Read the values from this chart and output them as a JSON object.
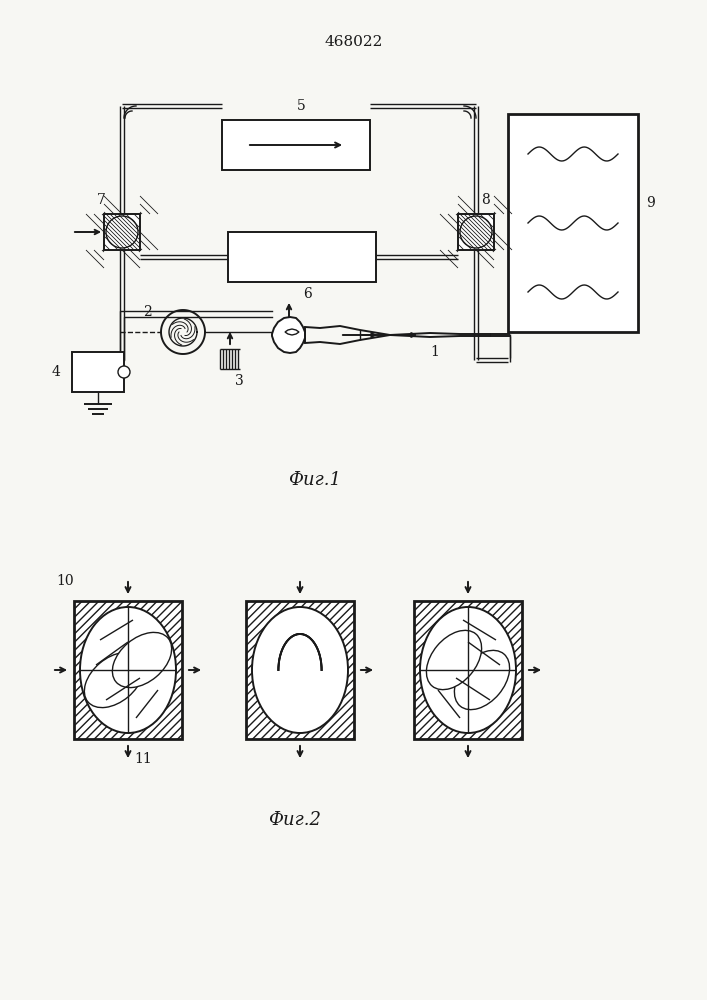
{
  "title": "468022",
  "fig1_caption": "Фиг.1",
  "fig2_caption": "Фиг.2",
  "bg_color": "#f7f7f3",
  "line_color": "#1a1a1a",
  "label_fontsize": 10,
  "title_fontsize": 11
}
